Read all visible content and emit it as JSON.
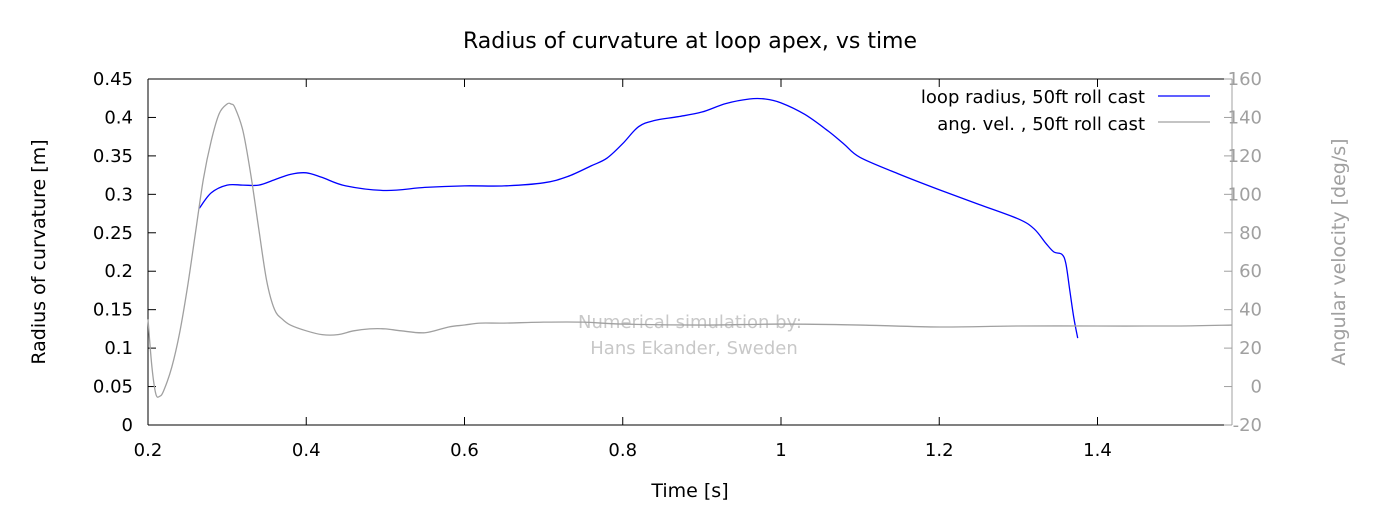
{
  "chart_data": {
    "type": "line",
    "title": "Radius of curvature at loop apex, vs time",
    "xlabel": "Time [s]",
    "ylabel": "Radius of curvature [m]",
    "y2label": "Angular velocity [deg/s]",
    "xlim": [
      0.2,
      1.57
    ],
    "ylim": [
      0,
      0.45
    ],
    "y2lim": [
      -20,
      160
    ],
    "x_ticks": [
      "0.2",
      "0.4",
      "0.6",
      "0.8",
      "1",
      "1.2",
      "1.4"
    ],
    "y_ticks": [
      "0",
      "0.05",
      "0.1",
      "0.15",
      "0.2",
      "0.25",
      "0.3",
      "0.35",
      "0.4",
      "0.45"
    ],
    "y2_ticks": [
      "-20",
      "0",
      "20",
      "40",
      "60",
      "80",
      "100",
      "120",
      "140",
      "160"
    ],
    "grid": false,
    "legend_position": "top-right",
    "annotation": [
      "Numerical simulation by:",
      "Hans Ekander, Sweden"
    ],
    "colors": {
      "radius": "#0000ff",
      "angvel": "#a0a0a0",
      "axis": "#000000",
      "axis2": "#a0a0a0"
    },
    "series": [
      {
        "name": "loop radius, 50ft roll cast",
        "axis": "left",
        "x": [
          0.265,
          0.28,
          0.3,
          0.32,
          0.34,
          0.36,
          0.38,
          0.4,
          0.42,
          0.45,
          0.5,
          0.55,
          0.6,
          0.65,
          0.7,
          0.73,
          0.76,
          0.78,
          0.8,
          0.82,
          0.84,
          0.87,
          0.9,
          0.93,
          0.96,
          0.98,
          1.0,
          1.03,
          1.06,
          1.08,
          1.1,
          1.15,
          1.2,
          1.25,
          1.3,
          1.32,
          1.335,
          1.345,
          1.355,
          1.36,
          1.365,
          1.37,
          1.375
        ],
        "y": [
          0.282,
          0.302,
          0.312,
          0.312,
          0.312,
          0.319,
          0.326,
          0.328,
          0.322,
          0.311,
          0.305,
          0.309,
          0.311,
          0.311,
          0.315,
          0.323,
          0.337,
          0.347,
          0.366,
          0.388,
          0.396,
          0.401,
          0.407,
          0.418,
          0.424,
          0.424,
          0.419,
          0.404,
          0.382,
          0.365,
          0.348,
          0.326,
          0.306,
          0.287,
          0.268,
          0.255,
          0.236,
          0.225,
          0.222,
          0.21,
          0.175,
          0.14,
          0.113
        ]
      },
      {
        "name": "ang. vel. , 50ft roll cast",
        "axis": "right",
        "x": [
          0.2,
          0.205,
          0.21,
          0.215,
          0.22,
          0.23,
          0.24,
          0.25,
          0.26,
          0.27,
          0.28,
          0.29,
          0.3,
          0.305,
          0.31,
          0.32,
          0.33,
          0.34,
          0.35,
          0.36,
          0.37,
          0.38,
          0.4,
          0.42,
          0.44,
          0.46,
          0.48,
          0.5,
          0.52,
          0.55,
          0.58,
          0.6,
          0.62,
          0.65,
          0.7,
          0.75,
          0.8,
          0.9,
          1.0,
          1.1,
          1.2,
          1.3,
          1.4,
          1.5,
          1.57
        ],
        "y": [
          35,
          10,
          -4,
          -5,
          -2,
          10,
          28,
          52,
          80,
          108,
          128,
          142,
          147,
          147,
          145,
          133,
          110,
          82,
          55,
          40,
          35,
          32,
          29,
          27,
          27,
          29,
          30,
          30,
          29,
          28,
          31,
          32,
          33,
          33,
          33.5,
          33.5,
          32.5,
          32,
          32.5,
          32,
          31,
          31.5,
          31.5,
          31.5,
          32
        ]
      }
    ]
  }
}
